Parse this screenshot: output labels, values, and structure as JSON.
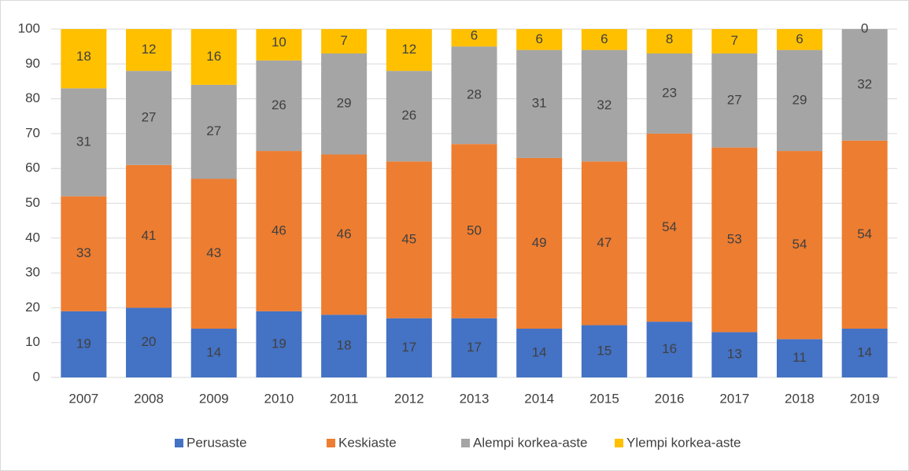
{
  "chart_data": {
    "type": "stacked_bar",
    "categories": [
      "2007",
      "2008",
      "2009",
      "2010",
      "2011",
      "2012",
      "2013",
      "2014",
      "2015",
      "2016",
      "2017",
      "2018",
      "2019"
    ],
    "series": [
      {
        "name": "Perusaste",
        "color": "#4472c4",
        "values": [
          19,
          20,
          14,
          19,
          18,
          17,
          17,
          14,
          15,
          16,
          13,
          11,
          14
        ]
      },
      {
        "name": "Keskiaste",
        "color": "#ed7d31",
        "values": [
          33,
          41,
          43,
          46,
          46,
          45,
          50,
          49,
          47,
          54,
          53,
          54,
          54
        ]
      },
      {
        "name": "Alempi korkea-aste",
        "color": "#a5a5a5",
        "values": [
          31,
          27,
          27,
          26,
          29,
          26,
          28,
          31,
          32,
          23,
          27,
          29,
          32
        ]
      },
      {
        "name": "Ylempi korkea-aste",
        "color": "#ffc000",
        "values": [
          18,
          12,
          16,
          10,
          7,
          12,
          6,
          6,
          6,
          8,
          7,
          6,
          0
        ]
      }
    ],
    "ylim": [
      0,
      100
    ],
    "yticks": [
      0,
      10,
      20,
      30,
      40,
      50,
      60,
      70,
      80,
      90,
      100
    ],
    "grid": true,
    "legend": "bottom"
  }
}
